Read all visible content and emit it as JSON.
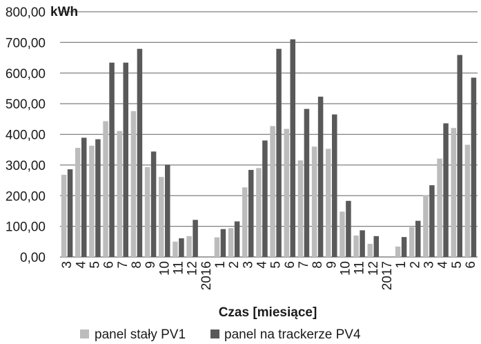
{
  "chart_data": {
    "type": "bar",
    "unit_label": "kWh",
    "xlabel": "Czas [miesiące]",
    "ylabel": "",
    "ylim": [
      0,
      800
    ],
    "y_ticks": [
      "0,00",
      "100,00",
      "200,00",
      "300,00",
      "400,00",
      "500,00",
      "600,00",
      "700,00",
      "800,00"
    ],
    "grid": true,
    "legend_position": "bottom",
    "categories": [
      "3",
      "4",
      "5",
      "6",
      "7",
      "8",
      "9",
      "10",
      "11",
      "12",
      "2016",
      "1",
      "2",
      "3",
      "4",
      "5",
      "6",
      "7",
      "8",
      "9",
      "10",
      "11",
      "12",
      "2017",
      "1",
      "2",
      "3",
      "4",
      "5",
      "6"
    ],
    "series": [
      {
        "name": "panel stały PV1",
        "color": "#bcbcbc",
        "values": [
          268,
          356,
          363,
          443,
          411,
          476,
          293,
          261,
          50,
          68,
          null,
          64,
          94,
          227,
          290,
          427,
          418,
          315,
          360,
          353,
          148,
          70,
          43,
          null,
          34,
          97,
          202,
          321,
          421,
          366
        ]
      },
      {
        "name": "panel na trackerze PV4",
        "color": "#595959",
        "values": [
          286,
          389,
          384,
          634,
          634,
          679,
          344,
          301,
          61,
          121,
          null,
          91,
          116,
          284,
          380,
          679,
          710,
          483,
          523,
          465,
          183,
          87,
          68,
          null,
          65,
          118,
          234,
          436,
          659,
          585
        ]
      }
    ]
  }
}
